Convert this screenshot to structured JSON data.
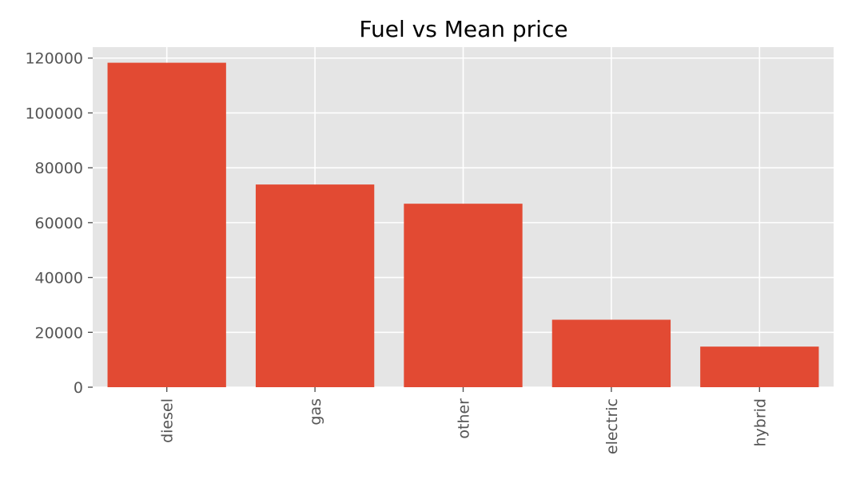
{
  "chart_data": {
    "type": "bar",
    "title": "Fuel vs Mean price",
    "xlabel": "",
    "ylabel": "",
    "categories": [
      "diesel",
      "gas",
      "other",
      "electric",
      "hybrid"
    ],
    "values": [
      118300,
      73900,
      66900,
      24600,
      14800
    ],
    "ylim": [
      0,
      124000
    ],
    "yticks": [
      0,
      20000,
      40000,
      60000,
      80000,
      100000,
      120000
    ],
    "grid": true,
    "legend": "none",
    "colors": {
      "bar": "#E24A33",
      "plot_background": "#E5E5E5",
      "grid": "#FFFFFF",
      "tick": "#555555"
    }
  }
}
